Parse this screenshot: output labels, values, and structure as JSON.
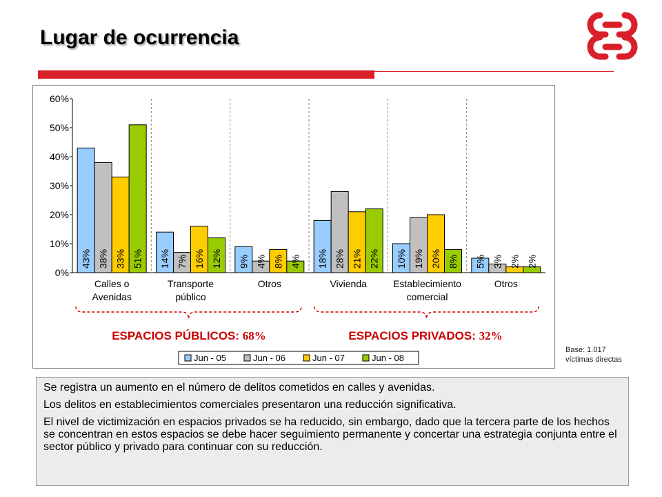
{
  "page": {
    "title": "Lugar de ocurrencia",
    "base_note_line1": "Base: 1.017",
    "base_note_line2": "víctimas directas"
  },
  "summary": {
    "p1": "Se registra un aumento en el número de delitos cometidos en calles y avenidas.",
    "p2": "Los delitos en establecimientos comerciales presentaron una reducción significativa.",
    "p3": "El nivel de victimización en espacios privados se ha reducido, sin embargo, dado que la tercera parte de los hechos se concentran en estos espacios se debe hacer seguimiento permanente y concertar una estrategia conjunta entre el sector público y privado para continuar con su reducción."
  },
  "colors": {
    "accent_red": "#d9202a",
    "series": [
      "#99ccff",
      "#c0c0c0",
      "#ffcc00",
      "#99cc00"
    ],
    "group_label": "#cc0000"
  },
  "chart_data": {
    "type": "bar",
    "categories": [
      [
        "Calles o",
        "Avenidas"
      ],
      [
        "Transporte",
        "público"
      ],
      [
        "Otros"
      ],
      [
        "Vivienda"
      ],
      [
        "Establecimiento",
        "comercial"
      ],
      [
        "Otros"
      ]
    ],
    "series": [
      {
        "name": "Jun - 05",
        "values": [
          43,
          14,
          9,
          18,
          10,
          5
        ],
        "labels": [
          "43%",
          "14%",
          "9%",
          "18%",
          "10%",
          "5%"
        ]
      },
      {
        "name": "Jun - 06",
        "values": [
          38,
          7,
          4,
          28,
          19,
          3
        ],
        "labels": [
          "38%",
          "7%",
          "4%",
          "28%",
          "19%",
          "3%"
        ]
      },
      {
        "name": "Jun - 07",
        "values": [
          33,
          16,
          8,
          21,
          20,
          2
        ],
        "labels": [
          "33%",
          "16%",
          "8%",
          "21%",
          "20%",
          "2%"
        ]
      },
      {
        "name": "Jun - 08",
        "values": [
          51,
          12,
          4,
          22,
          8,
          2
        ],
        "labels": [
          "51%",
          "12%",
          "4%",
          "22%",
          "8%",
          "2%"
        ]
      }
    ],
    "yticks": [
      "0%",
      "10%",
      "20%",
      "30%",
      "40%",
      "50%",
      "60%"
    ],
    "ylim": [
      0,
      60
    ],
    "groups": [
      {
        "label_main": "ESPACIOS PÚBLICOS:",
        "label_pct": "68%"
      },
      {
        "label_main": "ESPACIOS PRIVADOS:",
        "label_pct": "32%"
      }
    ],
    "legend_position": "bottom"
  }
}
